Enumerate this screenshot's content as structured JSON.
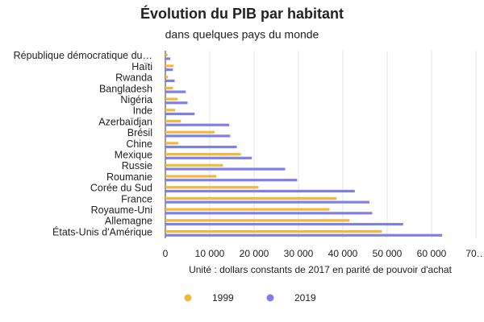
{
  "chart_data": {
    "type": "hbar",
    "title": "Évolution du PIB par habitant",
    "subtitle": "dans quelques pays du monde",
    "x_label": "Unité : dollars constants de 2017 en parité de pouvoir d'achat",
    "categories": [
      "République démocratique du…",
      "Haïti",
      "Rwanda",
      "Bangladesh",
      "Nigéria",
      "Inde",
      "Azerbaïdjan",
      "Brésil",
      "Chine",
      "Mexique",
      "Russie",
      "Roumanie",
      "Corée du Sud",
      "France",
      "Royaume-Uni",
      "Allemagne",
      "États-Unis d'Amérique"
    ],
    "series": [
      {
        "name": "1999",
        "color": "#f4b73a",
        "values": [
          500,
          1800,
          600,
          1700,
          2800,
          2200,
          3500,
          11100,
          2900,
          17000,
          13000,
          11500,
          21000,
          38600,
          37000,
          41500,
          48800
        ]
      },
      {
        "name": "2019",
        "color": "#7f7fe8",
        "values": [
          1100,
          1700,
          2100,
          4600,
          5000,
          6600,
          14400,
          14600,
          16100,
          19500,
          27000,
          29700,
          42700,
          46000,
          46600,
          53600,
          62400
        ]
      }
    ],
    "xlim": [
      0,
      70000
    ],
    "xticks": [
      0,
      {
        "value": 10000,
        "label": "10 000"
      },
      {
        "value": 20000,
        "label": "20 000"
      },
      {
        "value": 30000,
        "label": "30 000"
      },
      {
        "value": 40000,
        "label": "40 000"
      },
      {
        "value": 50000,
        "label": "50 000"
      },
      {
        "value": 60000,
        "label": "60 000"
      },
      {
        "value": 70000,
        "label": "70…"
      }
    ],
    "grid": true
  }
}
